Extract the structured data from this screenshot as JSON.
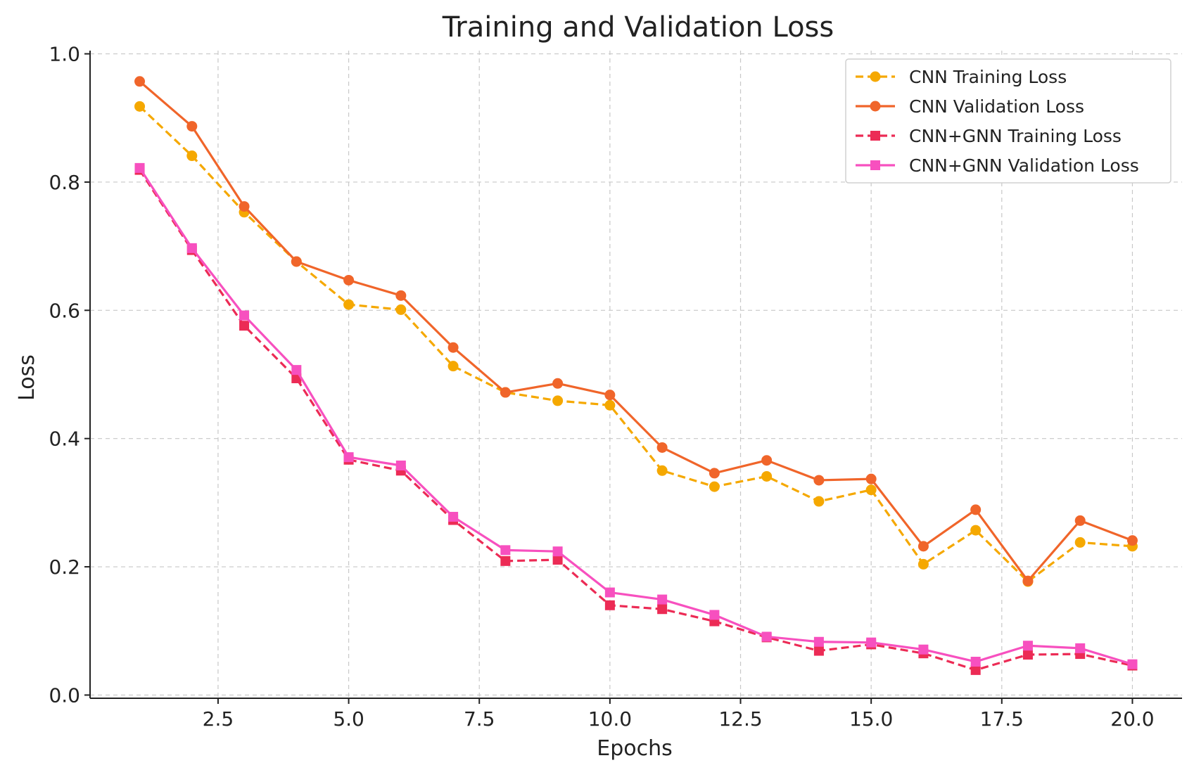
{
  "chart_data": {
    "type": "line",
    "title": "Training and Validation Loss",
    "xlabel": "Epochs",
    "ylabel": "Loss",
    "xlim": [
      0.05,
      20.95
    ],
    "ylim": [
      -0.005,
      1.005
    ],
    "xticks": [
      2.5,
      5.0,
      7.5,
      10.0,
      12.5,
      15.0,
      17.5,
      20.0
    ],
    "xtick_labels": [
      "2.5",
      "5.0",
      "7.5",
      "10.0",
      "12.5",
      "15.0",
      "17.5",
      "20.0"
    ],
    "yticks": [
      0.0,
      0.2,
      0.4,
      0.6,
      0.8,
      1.0
    ],
    "ytick_labels": [
      "0.0",
      "0.2",
      "0.4",
      "0.6",
      "0.8",
      "1.0"
    ],
    "grid": true,
    "legend_position": "top-right",
    "x": [
      1,
      2,
      3,
      4,
      5,
      6,
      7,
      8,
      9,
      10,
      11,
      12,
      13,
      14,
      15,
      16,
      17,
      18,
      19,
      20
    ],
    "series": [
      {
        "name": "CNN Training Loss",
        "color": "#f5a800",
        "line_style": "dashed",
        "marker": "circle",
        "values": [
          0.918,
          0.841,
          0.753,
          0.676,
          0.609,
          0.601,
          0.513,
          0.472,
          0.459,
          0.452,
          0.35,
          0.325,
          0.341,
          0.302,
          0.32,
          0.204,
          0.257,
          0.177,
          0.238,
          0.232
        ]
      },
      {
        "name": "CNN Validation Loss",
        "color": "#f0652a",
        "line_style": "solid",
        "marker": "circle",
        "values": [
          0.957,
          0.887,
          0.762,
          0.676,
          0.647,
          0.623,
          0.542,
          0.472,
          0.486,
          0.468,
          0.386,
          0.346,
          0.366,
          0.335,
          0.337,
          0.232,
          0.289,
          0.178,
          0.272,
          0.241
        ]
      },
      {
        "name": "CNN+GNN Training Loss",
        "color": "#ec2b55",
        "line_style": "dashed",
        "marker": "square",
        "values": [
          0.819,
          0.694,
          0.576,
          0.494,
          0.367,
          0.35,
          0.273,
          0.209,
          0.211,
          0.14,
          0.134,
          0.115,
          0.09,
          0.069,
          0.079,
          0.065,
          0.039,
          0.063,
          0.064,
          0.046
        ]
      },
      {
        "name": "CNN+GNN Validation Loss",
        "color": "#f750bf",
        "line_style": "solid",
        "marker": "square",
        "values": [
          0.822,
          0.697,
          0.592,
          0.507,
          0.371,
          0.358,
          0.278,
          0.226,
          0.224,
          0.16,
          0.149,
          0.125,
          0.091,
          0.083,
          0.082,
          0.071,
          0.052,
          0.077,
          0.073,
          0.048
        ]
      }
    ]
  }
}
